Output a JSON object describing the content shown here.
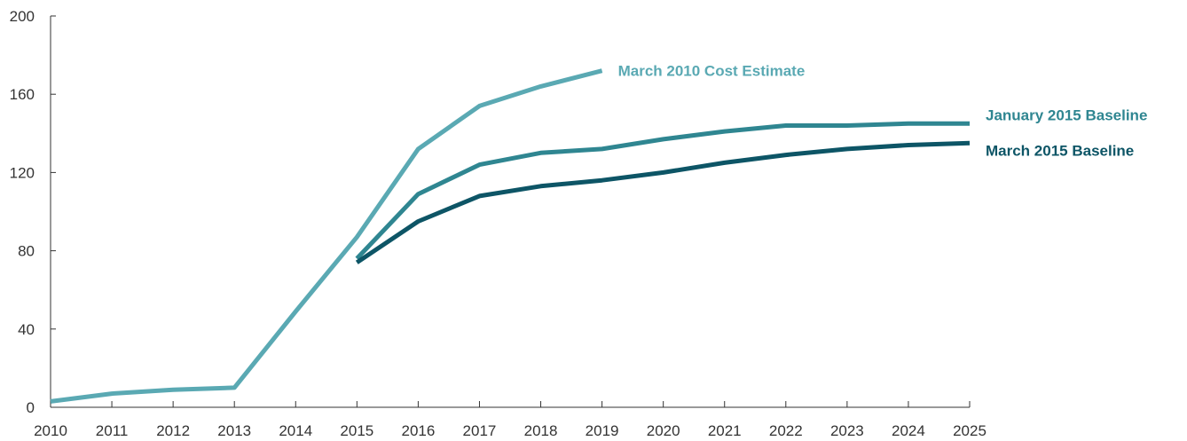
{
  "chart_data": {
    "type": "line",
    "title": "",
    "xlabel": "",
    "ylabel": "",
    "x": [
      2010,
      2011,
      2012,
      2013,
      2014,
      2015,
      2016,
      2017,
      2018,
      2019,
      2020,
      2021,
      2022,
      2023,
      2024,
      2025
    ],
    "x_tick_labels": [
      "2010",
      "2011",
      "2012",
      "2013",
      "2014",
      "2015",
      "2016",
      "2017",
      "2018",
      "2019",
      "2020",
      "2021",
      "2022",
      "2023",
      "2024",
      "2025"
    ],
    "ylim": [
      0,
      200
    ],
    "y_ticks": [
      0,
      40,
      80,
      120,
      160,
      200
    ],
    "y_tick_labels": [
      "0",
      "40",
      "80",
      "120",
      "160",
      "200"
    ],
    "grid": false,
    "legend": "inline labels at line ends",
    "series": [
      {
        "name": "March 2010 Cost Estimate",
        "color": "#5aa9b3",
        "x": [
          2010,
          2011,
          2012,
          2013,
          2014,
          2015,
          2016,
          2017,
          2018,
          2019
        ],
        "values": [
          3,
          7,
          9,
          10,
          49,
          87,
          132,
          154,
          164,
          172
        ]
      },
      {
        "name": "January 2015 Baseline",
        "color": "#2f8691",
        "x": [
          2015,
          2016,
          2017,
          2018,
          2019,
          2020,
          2021,
          2022,
          2023,
          2024,
          2025
        ],
        "values": [
          76,
          109,
          124,
          130,
          132,
          137,
          141,
          144,
          144,
          145,
          145
        ]
      },
      {
        "name": "March 2015 Baseline",
        "color": "#0d5566",
        "x": [
          2015,
          2016,
          2017,
          2018,
          2019,
          2020,
          2021,
          2022,
          2023,
          2024,
          2025
        ],
        "values": [
          74,
          95,
          108,
          113,
          116,
          120,
          125,
          129,
          132,
          134,
          135
        ]
      }
    ]
  }
}
